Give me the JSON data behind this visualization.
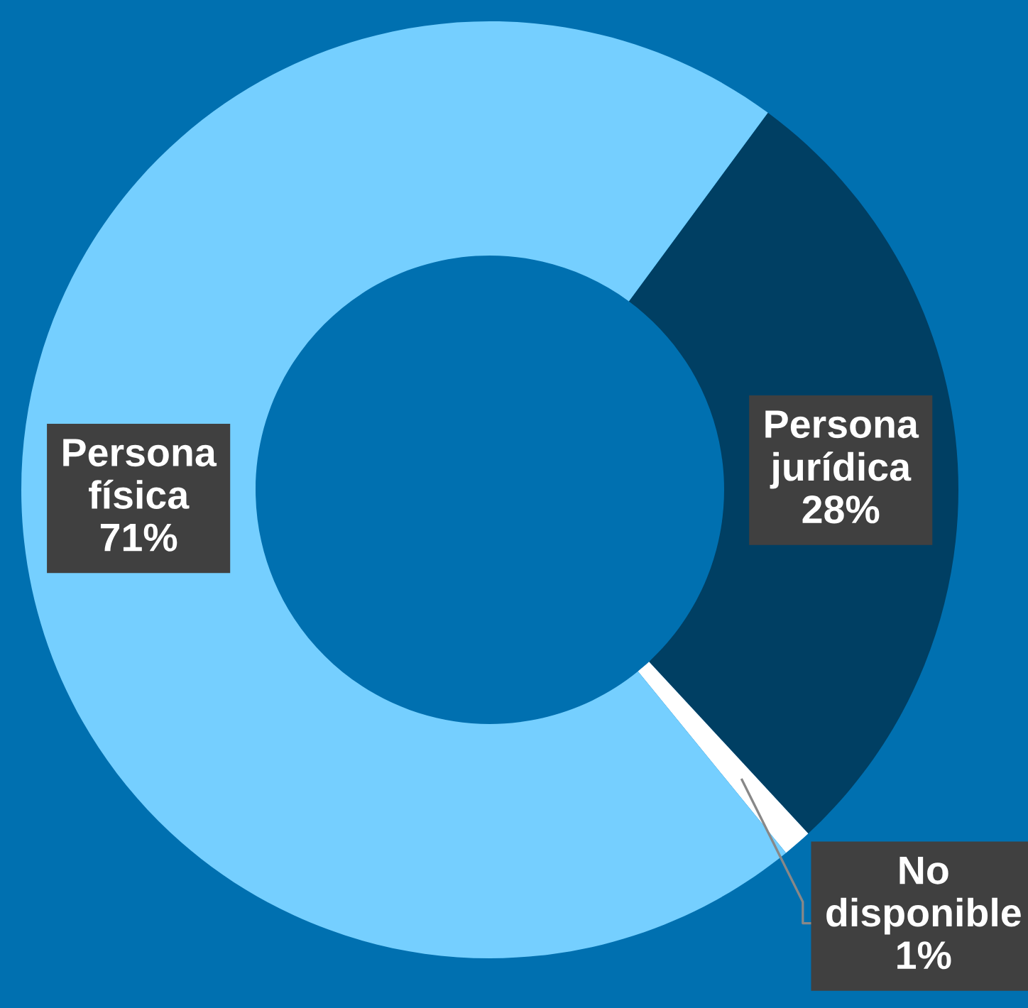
{
  "chart_data": {
    "type": "donut",
    "categories": [
      "Persona jurídica",
      "No disponible",
      "Persona física"
    ],
    "values": [
      28,
      1,
      71
    ],
    "colors": [
      "#003f63",
      "#ffffff",
      "#75cfff"
    ],
    "value_labels": [
      "28%",
      "1%",
      "71%"
    ],
    "legend": false
  }
}
